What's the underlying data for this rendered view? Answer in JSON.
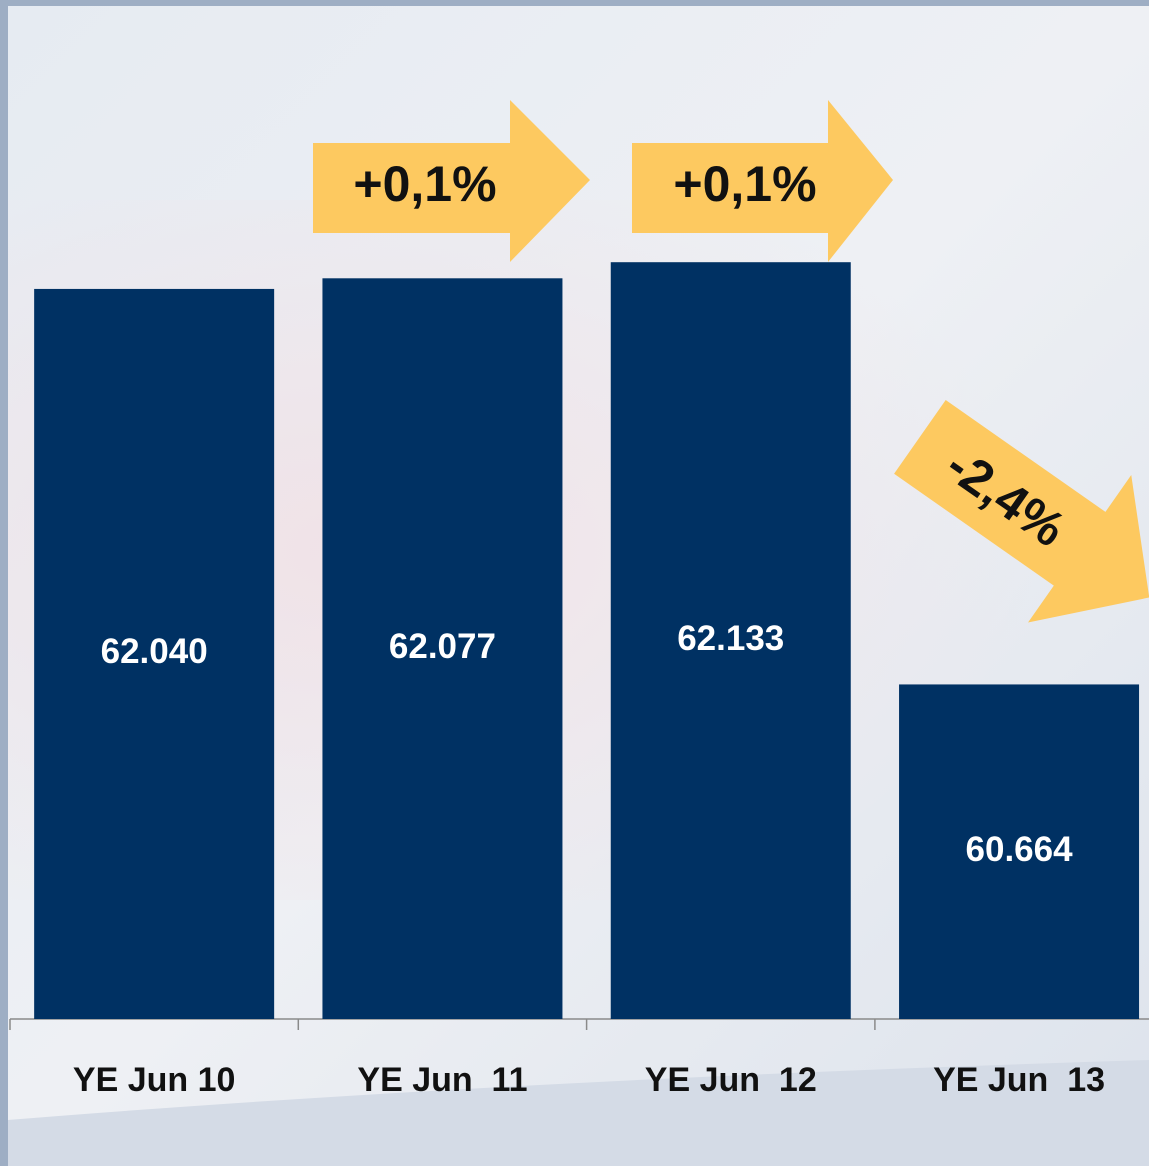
{
  "chart_data": {
    "type": "bar",
    "categories": [
      "YE Jun 10",
      "YE Jun  11",
      "YE Jun  12",
      "YE Jun  13"
    ],
    "values": [
      62040,
      62077,
      62133,
      60664
    ],
    "value_labels": [
      "62.040",
      "62.077",
      "62.133",
      "60.664"
    ],
    "color": "#003163",
    "ylim": [
      59500,
      63000
    ],
    "annotations": [
      "+0,1%",
      "+0,1%",
      "-2,4%"
    ]
  }
}
